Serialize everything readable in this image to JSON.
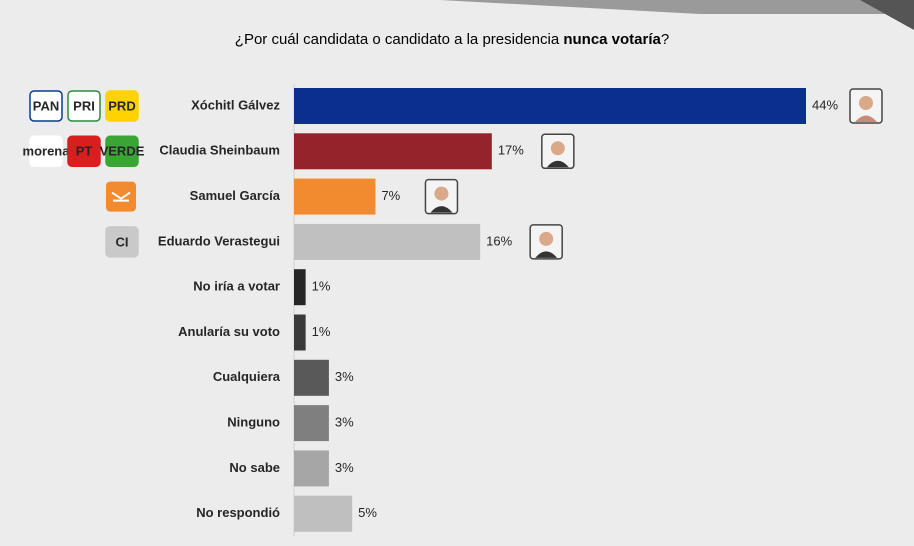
{
  "chart_data": {
    "type": "bar",
    "orientation": "horizontal",
    "title": [
      "¿Por cuál candidata o candidato a la presidencia ",
      "nunca votaría",
      "?"
    ],
    "categories": [
      "Xóchitl Gálvez",
      "Claudia Sheinbaum",
      "Samuel García",
      "Eduardo Verastegui",
      "No iría a votar",
      "Anularía su voto",
      "Cualquiera",
      "Ninguno",
      "No sabe",
      "No respondió"
    ],
    "values": [
      44,
      17,
      7,
      16,
      1,
      1,
      3,
      3,
      3,
      5
    ],
    "value_labels": [
      "44%",
      "17%",
      "7%",
      "16%",
      "1%",
      "1%",
      "3%",
      "3%",
      "3%",
      "5%"
    ],
    "colors": [
      "#0a2f8f",
      "#94232b",
      "#f28a30",
      "#c0c0c0",
      "#262626",
      "#3a3a3a",
      "#595959",
      "#7f7f7f",
      "#a6a6a6",
      "#bfbfbf"
    ],
    "party_logos": {
      "0": [
        "PAN",
        "PRI",
        "PRD"
      ],
      "1": [
        "morena",
        "PT",
        "VERDE"
      ],
      "3": [
        "CI"
      ]
    }
  }
}
